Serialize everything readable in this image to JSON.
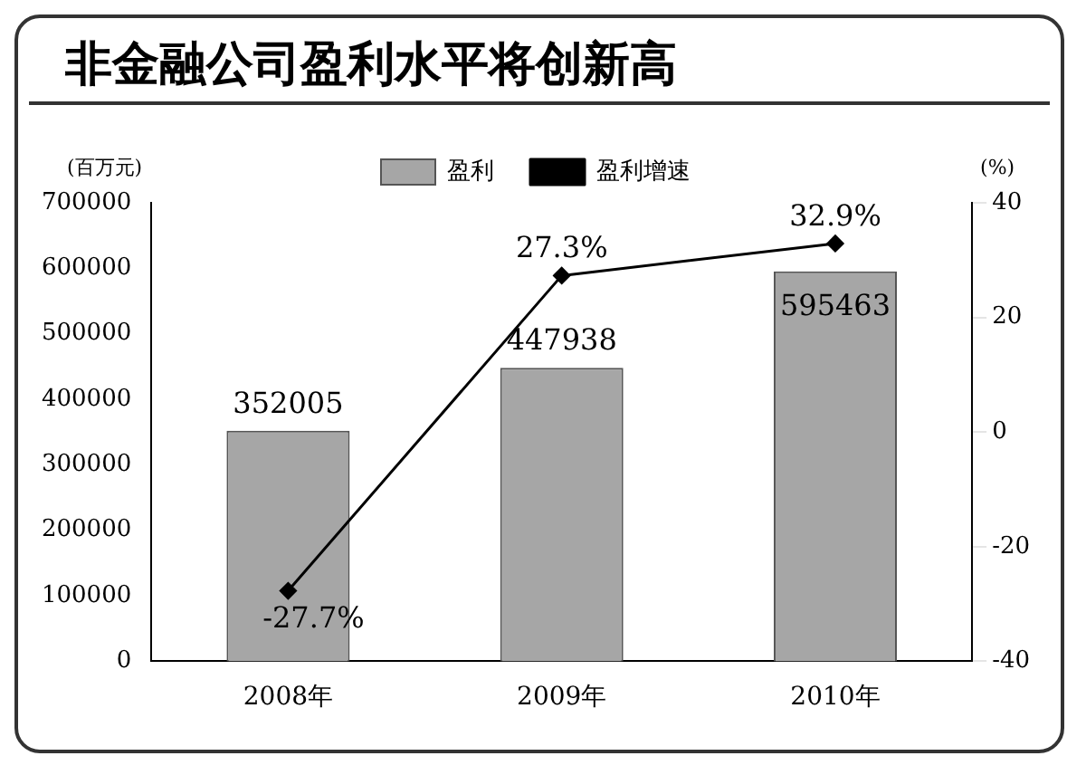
{
  "chart_data": {
    "type": "bar",
    "title": "非金融公司盈利水平将创新高",
    "ylabel": "(百万元)",
    "y2label": "(%)",
    "categories": [
      "2008年",
      "2009年",
      "2010年"
    ],
    "series": [
      {
        "name": "盈利",
        "color": "#a6a6a6",
        "values": [
          352005,
          447938,
          595463
        ],
        "value_labels": [
          "352005",
          "447938",
          "595463"
        ]
      },
      {
        "name": "盈利增速",
        "type": "line",
        "axis": "y2",
        "color": "#000000",
        "marker": "diamond",
        "values": [
          -27.7,
          27.3,
          32.9
        ],
        "value_labels": [
          "-27.7%",
          "27.3%",
          "32.9%"
        ]
      }
    ],
    "ylim": [
      0,
      700000
    ],
    "yticks": [
      0,
      100000,
      200000,
      300000,
      400000,
      500000,
      600000,
      700000
    ],
    "y2lim": [
      -40,
      40
    ],
    "y2ticks": [
      -40,
      -20,
      0,
      20,
      40
    ],
    "legend": "top",
    "grid": false
  }
}
